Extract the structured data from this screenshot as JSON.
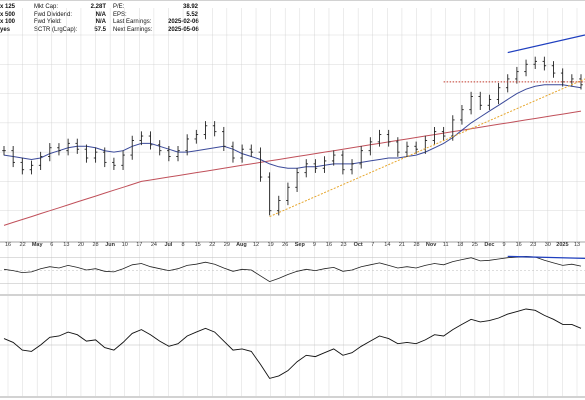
{
  "info": {
    "header_fragment": "ders",
    "left_rows": [
      "x 125",
      "x 500",
      "x 100",
      "yes"
    ],
    "middle": [
      {
        "label": "Mkt Cap:",
        "value": "2.28T"
      },
      {
        "label": "Fwd Dividend:",
        "value": "N/A"
      },
      {
        "label": "Fwd Yield:",
        "value": "N/A"
      },
      {
        "label": "SCTR (LrgCap):",
        "value": "57.5"
      }
    ],
    "right": [
      {
        "label": "P/E:",
        "value": "38.92"
      },
      {
        "label": "EPS:",
        "value": "5.52"
      },
      {
        "label": "Last Earnings:",
        "value": "2025-02-06"
      },
      {
        "label": "Next Earnings:",
        "value": "2025-05-06"
      }
    ]
  },
  "colors": {
    "price": "#222222",
    "ma_short": "#3b4a9a",
    "ma_long": "#c0505a",
    "trendline": "#e6a52a",
    "resistance": "#c0392b",
    "divergence": "#1f3fbf",
    "grid": "#cfcfcf"
  },
  "chart_data": {
    "type": "ohlc",
    "x_axis": {
      "tick_labels": [
        "16",
        "22",
        "May",
        "6",
        "13",
        "20",
        "28",
        "Jun",
        "10",
        "17",
        "24",
        "Jul",
        "8",
        "15",
        "22",
        "29",
        "Aug",
        "12",
        "19",
        "26",
        "Sep",
        "9",
        "16",
        "23",
        "Oct",
        "7",
        "14",
        "21",
        "28",
        "Nov",
        "11",
        "18",
        "25",
        "Dec",
        "9",
        "16",
        "23",
        "30",
        "2025",
        "13"
      ],
      "bold_labels": [
        "May",
        "Jun",
        "Jul",
        "Aug",
        "Sep",
        "Oct",
        "Nov",
        "Dec",
        "2025"
      ]
    },
    "price_panel": {
      "series": [
        {
          "kind": "ohlc_bars",
          "closes": [
            70.5,
            66.5,
            64.0,
            65.5,
            68.5,
            71.5,
            70.5,
            73.0,
            71.0,
            68.0,
            70.0,
            66.5,
            65.5,
            69.0,
            74.0,
            75.5,
            72.5,
            70.5,
            68.5,
            70.5,
            74.5,
            76.0,
            79.0,
            77.0,
            72.0,
            68.0,
            71.0,
            70.0,
            61.5,
            50.0,
            53.5,
            58.0,
            63.0,
            66.0,
            64.5,
            67.0,
            69.0,
            64.0,
            66.0,
            70.5,
            73.5,
            76.0,
            73.5,
            70.0,
            72.0,
            71.0,
            74.0,
            77.0,
            75.5,
            81.0,
            84.5,
            89.0,
            86.0,
            88.0,
            92.0,
            95.0,
            97.5,
            100.0,
            101.0,
            99.5,
            97.0,
            94.0,
            95.0,
            93.0
          ]
        },
        {
          "kind": "moving_average_short",
          "values": [
            69.0,
            68.5,
            68.0,
            67.5,
            68.0,
            69.5,
            70.5,
            71.5,
            72.0,
            72.0,
            71.5,
            70.5,
            70.0,
            70.5,
            72.0,
            73.0,
            73.0,
            72.0,
            71.0,
            70.0,
            70.0,
            70.5,
            71.0,
            71.5,
            72.0,
            71.0,
            69.5,
            68.5,
            67.5,
            66.0,
            65.0,
            64.5,
            64.5,
            65.0,
            65.0,
            65.5,
            66.0,
            66.0,
            66.0,
            66.5,
            67.0,
            67.5,
            68.0,
            68.0,
            68.5,
            69.0,
            70.0,
            71.5,
            73.0,
            75.0,
            77.5,
            80.0,
            82.0,
            84.0,
            86.0,
            88.0,
            90.0,
            91.5,
            92.5,
            93.0,
            93.0,
            93.0,
            92.5,
            92.0
          ]
        },
        {
          "kind": "moving_average_long",
          "values": [
            45.0,
            46.0,
            47.0,
            48.0,
            49.0,
            50.0,
            51.0,
            52.0,
            53.0,
            54.0,
            55.0,
            56.0,
            57.0,
            58.0,
            59.0,
            60.0,
            60.5,
            61.0,
            61.5,
            62.0,
            62.5,
            63.0,
            63.5,
            64.0,
            64.5,
            65.0,
            65.5,
            66.0,
            66.5,
            67.0,
            67.5,
            68.0,
            68.5,
            69.0,
            69.5,
            70.0,
            70.5,
            71.0,
            71.5,
            72.0,
            72.5,
            73.0,
            73.5,
            74.0,
            74.5,
            75.0,
            75.5,
            76.0,
            76.5,
            77.0,
            77.5,
            78.0,
            78.5,
            79.0,
            79.5,
            80.0,
            80.5,
            81.0,
            81.5,
            82.0,
            82.5,
            83.0,
            83.5,
            84.0
          ]
        }
      ]
    },
    "rsi_panel": {
      "values": [
        52,
        50,
        47,
        48,
        53,
        56,
        54,
        58,
        55,
        51,
        53,
        49,
        48,
        53,
        59,
        61,
        56,
        53,
        50,
        53,
        58,
        60,
        63,
        60,
        54,
        49,
        52,
        51,
        42,
        33,
        38,
        44,
        49,
        52,
        50,
        53,
        55,
        49,
        51,
        56,
        59,
        62,
        58,
        54,
        56,
        54,
        58,
        61,
        59,
        64,
        67,
        70,
        65,
        66,
        68,
        70,
        71,
        72,
        71,
        66,
        62,
        58,
        60,
        57
      ]
    },
    "macd_panel": {
      "values": [
        0.5,
        0.2,
        -0.4,
        -0.5,
        0.0,
        0.6,
        0.7,
        1.0,
        0.8,
        0.3,
        0.4,
        -0.2,
        -0.4,
        0.2,
        0.9,
        1.2,
        0.8,
        0.3,
        -0.1,
        0.1,
        0.7,
        1.0,
        1.3,
        1.0,
        0.3,
        -0.4,
        -0.3,
        -0.5,
        -1.5,
        -2.6,
        -2.4,
        -2.0,
        -1.3,
        -0.8,
        -0.9,
        -0.6,
        -0.3,
        -0.8,
        -0.6,
        -0.1,
        0.3,
        0.7,
        0.5,
        0.1,
        0.2,
        0.1,
        0.4,
        0.8,
        0.7,
        1.2,
        1.6,
        2.0,
        1.8,
        1.9,
        2.1,
        2.4,
        2.6,
        2.8,
        2.7,
        2.3,
        2.0,
        1.6,
        1.6,
        1.3
      ]
    }
  }
}
